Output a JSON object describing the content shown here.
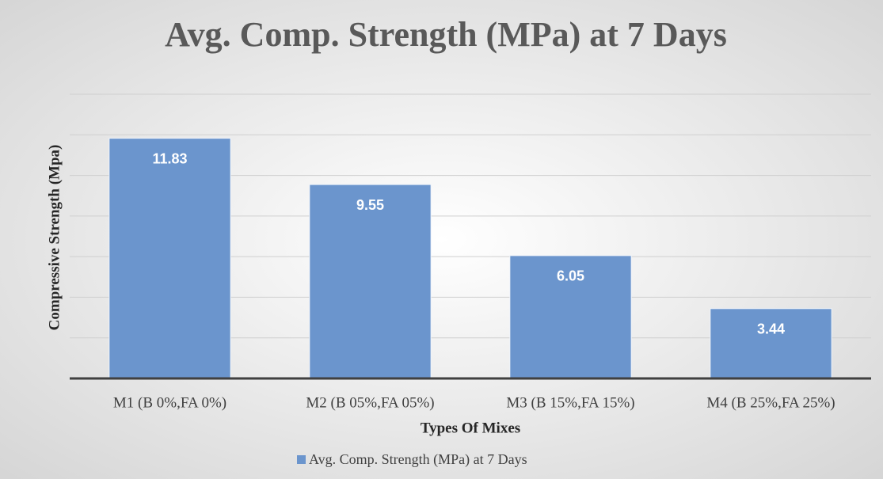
{
  "chart_data": {
    "type": "bar",
    "title": "Avg. Comp. Strength (MPa) at 7 Days",
    "x_label": "Types Of Mixes",
    "y_label": "Compressive Strength (Mpa)",
    "categories": [
      "M1 (B 0%,FA 0%)",
      "M2 (B 05%,FA 05%)",
      "M3 (B 15%,FA 15%)",
      "M4 (B 25%,FA 25%)"
    ],
    "series": [
      {
        "name": "Avg. Comp. Strength (MPa) at 7 Days",
        "color": "#6b95cd",
        "values": [
          11.83,
          9.55,
          6.05,
          3.44
        ]
      }
    ],
    "ylim": [
      0,
      14
    ],
    "yticks": [
      0,
      2,
      4,
      6,
      8,
      10,
      12,
      14
    ],
    "grid": true,
    "legend": "bottom"
  }
}
